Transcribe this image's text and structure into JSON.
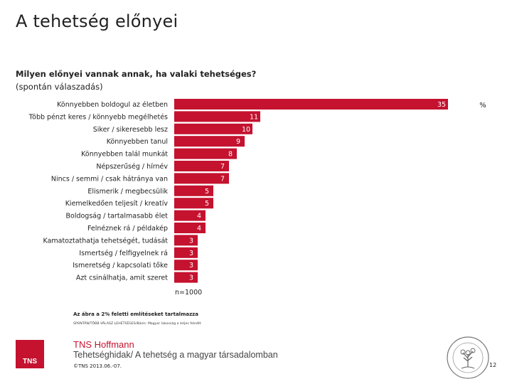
{
  "title": "A tehetség előnyei",
  "question": "Milyen előnyei vannak annak, ha valaki tehetséges?",
  "question_note": "(spontán válaszadás)",
  "footer": {
    "n_label": "n=1000",
    "note": "Az ábra a 2% feletti említéseket tartalmazza",
    "source": "SPONTÁN/TÖBB VÁLASZ LEHETSÉGES/Bázis: Magyar lakosság a teljes felnőtt",
    "logo_text": "TNS",
    "company": "TNS Hoffmann",
    "project": "Tehetséghidak/ A tehetség a magyar társadalomban",
    "copyright": "©TNS 2013.06.-07.",
    "page": "12",
    "seal_text": "Magyar Tehetségsegítő Szervezetek Szövetsége"
  },
  "colors": {
    "bar": "#c4122f",
    "brand": "#c4122f"
  },
  "chart_data": {
    "type": "bar",
    "orientation": "horizontal",
    "unit_label": "%",
    "categories": [
      "Könnyebben boldogul az életben",
      "Több pénzt keres / könnyebb megélhetés",
      "Siker / sikeresebb lesz",
      "Könnyebben tanul",
      "Könnyebben talál munkát",
      "Népszerűség / hírnév",
      "Nincs / semmi / csak hátránya van",
      "Elismerik / megbecsülik",
      "Kiemelkedően teljesít / kreatív",
      "Boldogság / tartalmasabb élet",
      "Felnéznek rá / példakép",
      "Kamatoztathatja tehetségét, tudását",
      "Ismertség / felfigyelnek rá",
      "Ismeretség / kapcsolati tőke",
      "Azt csinálhatja, amit szeret"
    ],
    "values": [
      35,
      11,
      10,
      9,
      8,
      7,
      7,
      5,
      5,
      4,
      4,
      3,
      3,
      3,
      3
    ],
    "xlim": [
      0,
      35
    ],
    "grid": false,
    "legend": "none"
  }
}
